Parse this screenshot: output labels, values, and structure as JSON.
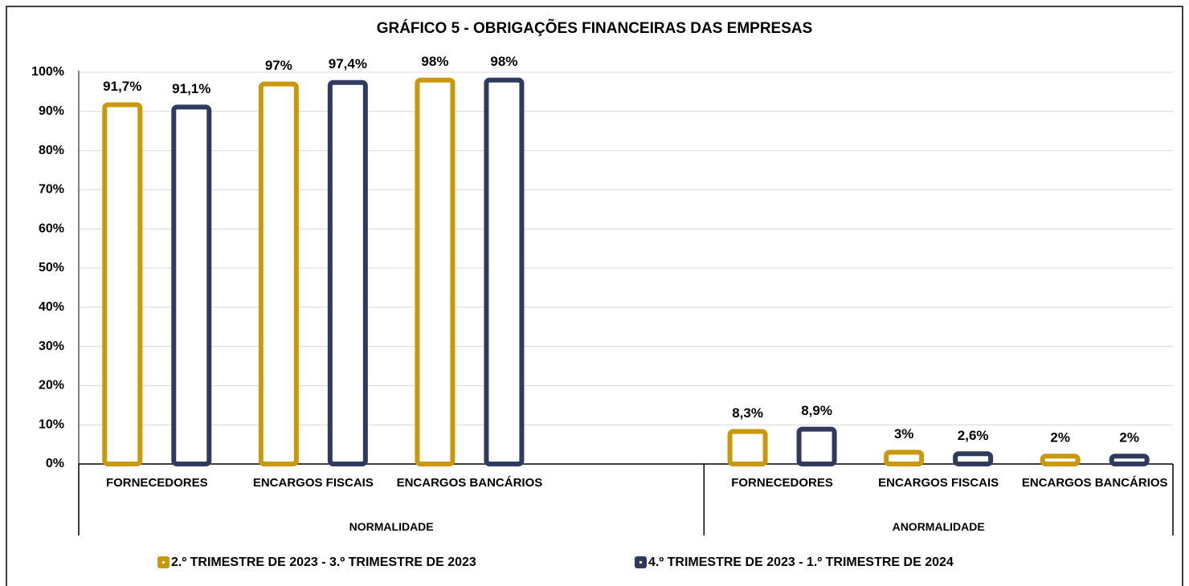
{
  "chart_data": {
    "type": "bar",
    "title": "GRÁFICO 5 - OBRIGAÇÕES FINANCEIRAS DAS EMPRESAS",
    "groups": [
      {
        "name": "NORMALIDADE",
        "categories": [
          "FORNECEDORES",
          "ENCARGOS FISCAIS",
          "ENCARGOS BANCÁRIOS",
          null
        ]
      },
      {
        "name": "ANORMALIDADE",
        "categories": [
          "FORNECEDORES",
          "ENCARGOS FISCAIS",
          "ENCARGOS BANCÁRIOS"
        ]
      }
    ],
    "series": [
      {
        "name": "2.º TRIMESTRE DE 2023 - 3.º TRIMESTRE DE 2023",
        "color": "#C9980B",
        "values": [
          91.7,
          97,
          98,
          null,
          8.3,
          3,
          2
        ],
        "value_labels": [
          "91,7%",
          "97%",
          "98%",
          null,
          "8,3%",
          "3%",
          "2%"
        ]
      },
      {
        "name": "4.º TRIMESTRE DE 2023 - 1.º TRIMESTRE DE 2024",
        "color": "#2F3A5E",
        "values": [
          91.1,
          97.4,
          98,
          null,
          8.9,
          2.6,
          2
        ],
        "value_labels": [
          "91,1%",
          "97,4%",
          "98%",
          null,
          "8,9%",
          "2,6%",
          "2%"
        ]
      }
    ],
    "ylim": [
      0,
      100
    ],
    "yticks": [
      {
        "value": 0,
        "label": "0%"
      },
      {
        "value": 10,
        "label": "10%"
      },
      {
        "value": 20,
        "label": "20%"
      },
      {
        "value": 30,
        "label": "30%"
      },
      {
        "value": 40,
        "label": "40%"
      },
      {
        "value": 50,
        "label": "50%"
      },
      {
        "value": 60,
        "label": "60%"
      },
      {
        "value": 70,
        "label": "70%"
      },
      {
        "value": 80,
        "label": "80%"
      },
      {
        "value": 90,
        "label": "90%"
      },
      {
        "value": 100,
        "label": "100%"
      }
    ],
    "grid": true,
    "legend": "bottom"
  }
}
